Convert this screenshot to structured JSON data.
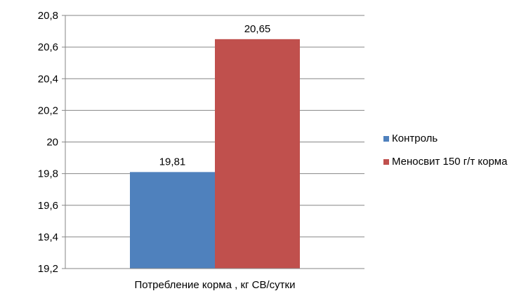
{
  "chart_data": {
    "type": "bar",
    "categories": [
      "Потребление корма , кг СВ/сутки"
    ],
    "series": [
      {
        "name": "Контроль",
        "values": [
          19.81
        ],
        "color": "#4F81BD",
        "data_label": "19,81"
      },
      {
        "name": "Меносвит 150 г/т корма",
        "values": [
          20.65
        ],
        "color": "#C0504D",
        "data_label": "20,65"
      }
    ],
    "ylim": [
      19.2,
      20.8
    ],
    "yticks": [
      {
        "value": 19.2,
        "label": "19,2"
      },
      {
        "value": 19.4,
        "label": "19,4"
      },
      {
        "value": 19.6,
        "label": "19,6"
      },
      {
        "value": 19.8,
        "label": "19,8"
      },
      {
        "value": 20.0,
        "label": "20"
      },
      {
        "value": 20.2,
        "label": "20,2"
      },
      {
        "value": 20.4,
        "label": "20,4"
      },
      {
        "value": 20.6,
        "label": "20,6"
      },
      {
        "value": 20.8,
        "label": "20,8"
      }
    ],
    "grid": true,
    "legend_position": "right",
    "title": "",
    "xlabel": "",
    "ylabel": ""
  }
}
